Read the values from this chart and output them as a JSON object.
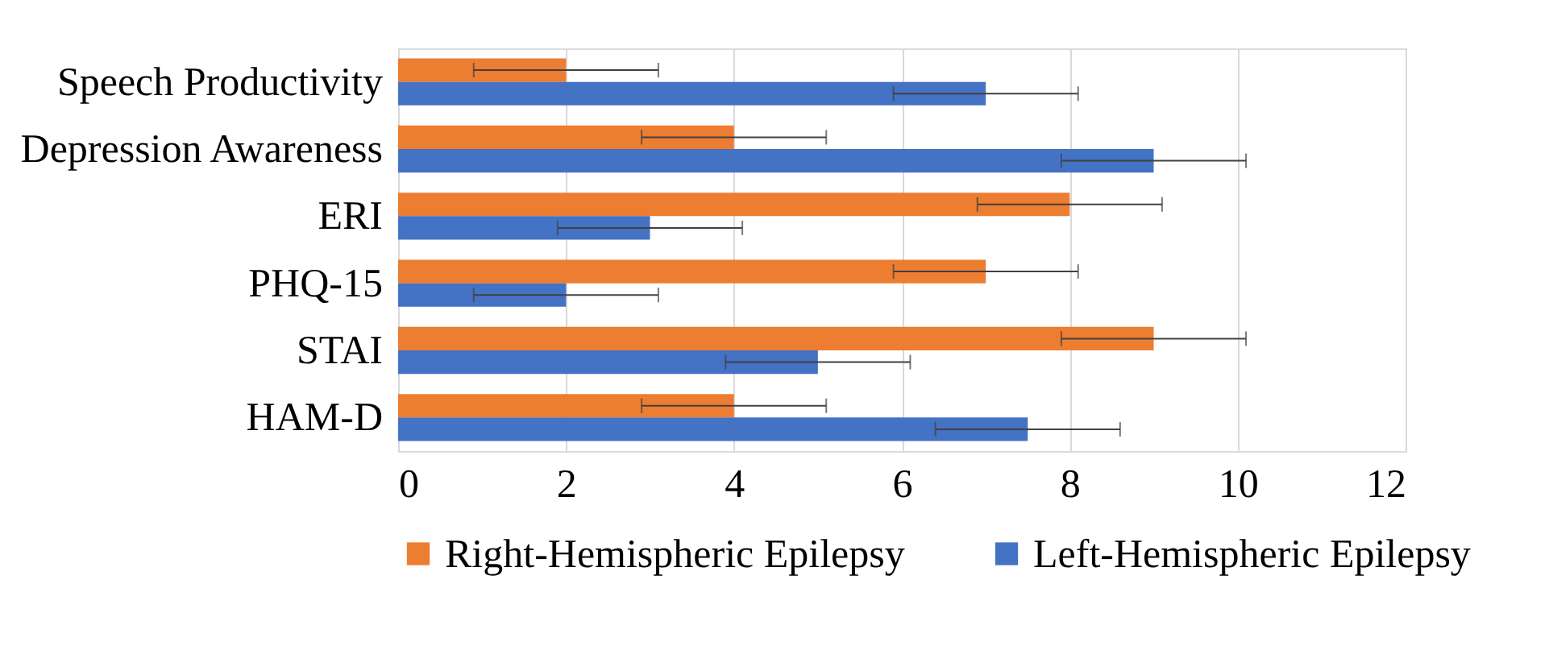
{
  "chart_data": {
    "type": "bar",
    "orientation": "horizontal",
    "categories": [
      "Speech Productivity",
      "Depression Awareness",
      "ERI",
      "PHQ-15",
      "STAI",
      "HAM-D"
    ],
    "series": [
      {
        "name": "Right-Hemispheric Epilepsy",
        "color": "#ed7d31",
        "values": [
          2,
          4,
          8,
          7,
          9,
          4
        ],
        "errors": [
          1.1,
          1.1,
          1.1,
          1.1,
          1.1,
          1.1
        ]
      },
      {
        "name": "Left-Hemispheric Epilepsy",
        "color": "#4472c4",
        "values": [
          7,
          9,
          3,
          2,
          5,
          7.5
        ],
        "errors": [
          1.1,
          1.1,
          1.1,
          1.1,
          1.1,
          1.1
        ]
      }
    ],
    "xlim": [
      0,
      12
    ],
    "xticks": [
      0,
      2,
      4,
      6,
      8,
      10,
      12
    ],
    "grid": "x",
    "legend": "bottom"
  }
}
